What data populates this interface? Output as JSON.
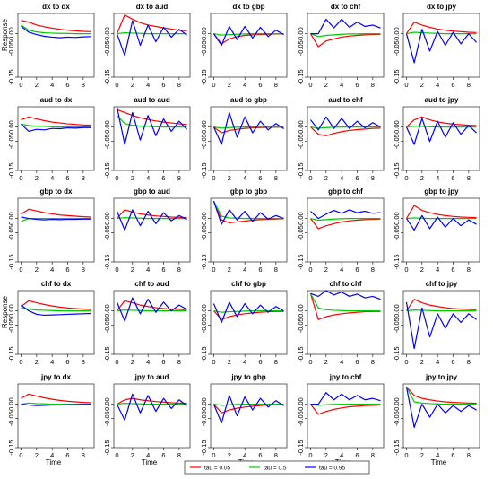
{
  "legend": {
    "items": [
      {
        "label": "tau = 0.05",
        "color": "#ff0000"
      },
      {
        "label": "tau = 0.5",
        "color": "#00cc00"
      },
      {
        "label": "tau = 0.95",
        "color": "#0000ff"
      }
    ]
  },
  "chart_data": {
    "type": "line",
    "layout": "5x5 small multiples",
    "x": [
      0,
      1,
      2,
      3,
      4,
      5,
      6,
      7,
      8,
      9
    ],
    "xticks": [
      0,
      2,
      4,
      6,
      8
    ],
    "yticks": [
      0.0,
      -0.05,
      -0.15
    ],
    "ytick_labels": [
      "0.00",
      "-0.05",
      "-0.15"
    ],
    "ylim": [
      -0.15,
      0.07
    ],
    "xlabel": "Time",
    "ylabel": "Response",
    "grid": false,
    "legend_position": "bottom-center",
    "series_names": [
      "tau = 0.05",
      "tau = 0.5",
      "tau = 0.95"
    ],
    "series_colors": [
      "#ff0000",
      "#00cc00",
      "#0000ff"
    ],
    "panels": [
      {
        "title": "dx to dx",
        "series": [
          [
            0.046,
            0.04,
            0.03,
            0.024,
            0.019,
            0.015,
            0.012,
            0.01,
            0.008,
            0.007
          ],
          [
            0.03,
            0.012,
            0.006,
            0.003,
            0.002,
            0.001,
            0.001,
            0.0,
            0.0,
            0.0
          ],
          [
            0.026,
            0.005,
            -0.003,
            -0.009,
            -0.012,
            -0.014,
            -0.012,
            -0.013,
            -0.011,
            -0.01
          ]
        ]
      },
      {
        "title": "dx to aud",
        "series": [
          [
            0.0,
            0.065,
            0.05,
            0.038,
            0.03,
            0.025,
            0.02,
            0.016,
            0.012,
            0.01
          ],
          [
            0.0,
            0.003,
            0.002,
            0.001,
            0.0,
            0.0,
            0.0,
            0.0,
            0.0,
            0.0
          ],
          [
            0.0,
            -0.075,
            0.045,
            -0.04,
            0.03,
            -0.028,
            0.022,
            -0.012,
            0.015,
            -0.005
          ]
        ]
      },
      {
        "title": "dx to gbp",
        "series": [
          [
            0.0,
            -0.035,
            -0.018,
            -0.01,
            -0.006,
            -0.004,
            -0.003,
            -0.002,
            -0.001,
            -0.001
          ],
          [
            0.0,
            -0.005,
            -0.003,
            -0.002,
            -0.001,
            0.0,
            0.0,
            0.0,
            0.0,
            0.0
          ],
          [
            0.0,
            -0.04,
            0.025,
            -0.02,
            0.025,
            -0.015,
            0.022,
            -0.01,
            0.012,
            -0.003
          ]
        ]
      },
      {
        "title": "dx to chf",
        "series": [
          [
            0.0,
            -0.045,
            -0.025,
            -0.018,
            -0.012,
            -0.008,
            -0.006,
            -0.004,
            -0.003,
            -0.002
          ],
          [
            0.0,
            -0.01,
            -0.006,
            -0.004,
            -0.002,
            -0.001,
            -0.001,
            0.0,
            0.0,
            0.0
          ],
          [
            0.0,
            0.0,
            0.05,
            0.02,
            0.05,
            0.022,
            0.04,
            0.025,
            0.03,
            0.02
          ]
        ]
      },
      {
        "title": "dx to jpy",
        "series": [
          [
            0.0,
            0.04,
            0.03,
            0.022,
            0.016,
            0.012,
            0.009,
            0.007,
            0.005,
            0.004
          ],
          [
            0.0,
            0.005,
            0.003,
            0.002,
            0.001,
            0.0,
            0.0,
            0.0,
            0.0,
            0.0
          ],
          [
            0.0,
            -0.1,
            0.015,
            -0.06,
            0.008,
            -0.04,
            0.005,
            -0.035,
            0.0,
            -0.03
          ]
        ]
      },
      {
        "title": "aud to dx",
        "series": [
          [
            0.025,
            0.035,
            0.028,
            0.022,
            0.017,
            0.014,
            0.011,
            0.009,
            0.007,
            0.006
          ],
          [
            0.01,
            0.005,
            0.003,
            0.002,
            0.001,
            0.0,
            0.0,
            0.0,
            0.0,
            0.0
          ],
          [
            0.01,
            -0.015,
            -0.008,
            -0.01,
            -0.005,
            -0.006,
            -0.003,
            -0.004,
            -0.002,
            -0.002
          ]
        ]
      },
      {
        "title": "aud to aud",
        "series": [
          [
            0.06,
            0.05,
            0.04,
            0.032,
            0.026,
            0.021,
            0.017,
            0.014,
            0.011,
            0.009
          ],
          [
            0.04,
            0.012,
            0.006,
            0.003,
            0.002,
            0.001,
            0.0,
            0.0,
            0.0,
            0.0
          ],
          [
            0.07,
            -0.06,
            0.05,
            -0.045,
            0.04,
            -0.03,
            0.028,
            -0.015,
            0.02,
            -0.008
          ]
        ]
      },
      {
        "title": "aud to gbp",
        "series": [
          [
            0.0,
            -0.02,
            -0.012,
            -0.008,
            -0.005,
            -0.003,
            -0.002,
            -0.001,
            -0.001,
            0.0
          ],
          [
            0.0,
            -0.004,
            -0.002,
            -0.001,
            0.0,
            0.0,
            0.0,
            0.0,
            0.0,
            0.0
          ],
          [
            0.0,
            -0.06,
            0.05,
            -0.035,
            0.035,
            -0.02,
            0.02,
            -0.01,
            0.012,
            -0.006
          ]
        ]
      },
      {
        "title": "aud to chf",
        "series": [
          [
            0.0,
            -0.025,
            -0.03,
            -0.022,
            -0.016,
            -0.012,
            -0.009,
            -0.007,
            -0.005,
            -0.004
          ],
          [
            0.0,
            -0.004,
            -0.002,
            -0.001,
            0.0,
            0.0,
            0.0,
            0.0,
            0.0,
            0.0
          ],
          [
            0.025,
            -0.01,
            0.035,
            -0.005,
            0.03,
            -0.005,
            0.02,
            -0.003,
            0.015,
            0.0
          ]
        ]
      },
      {
        "title": "aud to jpy",
        "series": [
          [
            0.0,
            0.025,
            0.035,
            0.025,
            0.018,
            0.013,
            0.01,
            0.008,
            0.006,
            0.005
          ],
          [
            0.0,
            0.003,
            0.002,
            0.001,
            0.0,
            0.0,
            0.0,
            0.0,
            0.0,
            0.0
          ],
          [
            0.0,
            -0.06,
            0.03,
            -0.05,
            0.02,
            -0.035,
            0.015,
            -0.025,
            0.005,
            -0.02
          ]
        ]
      },
      {
        "title": "gbp to dx",
        "series": [
          [
            0.015,
            0.032,
            0.026,
            0.02,
            0.016,
            0.012,
            0.01,
            0.008,
            0.006,
            0.005
          ],
          [
            -0.01,
            0.0,
            0.0,
            0.0,
            0.0,
            0.0,
            0.0,
            0.0,
            0.0,
            0.0
          ],
          [
            0.005,
            0.0,
            -0.003,
            -0.005,
            -0.003,
            -0.004,
            -0.003,
            -0.003,
            -0.002,
            -0.002
          ]
        ]
      },
      {
        "title": "gbp to aud",
        "series": [
          [
            0.0,
            0.03,
            0.022,
            0.016,
            0.012,
            0.009,
            0.007,
            0.005,
            0.004,
            0.003
          ],
          [
            0.0,
            0.003,
            0.002,
            0.001,
            0.0,
            0.0,
            0.0,
            0.0,
            0.0,
            0.0
          ],
          [
            0.025,
            -0.04,
            0.03,
            -0.025,
            0.025,
            -0.018,
            0.02,
            -0.008,
            0.01,
            -0.003
          ]
        ]
      },
      {
        "title": "gbp to gbp",
        "series": [
          [
            0.06,
            -0.005,
            -0.015,
            -0.012,
            -0.009,
            -0.006,
            -0.004,
            -0.003,
            -0.002,
            -0.001
          ],
          [
            0.06,
            0.008,
            0.002,
            0.001,
            0.0,
            0.0,
            0.0,
            0.0,
            0.0,
            0.0
          ],
          [
            0.06,
            -0.02,
            0.03,
            -0.005,
            0.025,
            -0.01,
            0.02,
            -0.002,
            0.01,
            0.0
          ]
        ]
      },
      {
        "title": "gbp to chf",
        "series": [
          [
            0.0,
            -0.035,
            -0.025,
            -0.018,
            -0.012,
            -0.008,
            -0.006,
            -0.004,
            -0.003,
            -0.002
          ],
          [
            0.0,
            -0.006,
            -0.004,
            -0.002,
            -0.001,
            0.0,
            0.0,
            0.0,
            0.0,
            0.0
          ],
          [
            0.025,
            0.0,
            0.015,
            0.028,
            0.018,
            0.03,
            0.02,
            0.025,
            0.018,
            0.02
          ]
        ]
      },
      {
        "title": "gbp to jpy",
        "series": [
          [
            0.0,
            0.045,
            0.028,
            0.02,
            0.014,
            0.01,
            0.007,
            0.005,
            0.004,
            0.003
          ],
          [
            0.0,
            0.002,
            0.001,
            0.0,
            0.0,
            0.0,
            0.0,
            0.0,
            0.0,
            0.0
          ],
          [
            0.0,
            -0.04,
            0.01,
            -0.035,
            0.005,
            -0.03,
            0.0,
            -0.025,
            -0.005,
            -0.02
          ]
        ]
      },
      {
        "title": "chf to dx",
        "series": [
          [
            0.015,
            0.035,
            0.028,
            0.022,
            0.017,
            0.013,
            0.01,
            0.008,
            0.006,
            0.005
          ],
          [
            0.01,
            0.006,
            0.003,
            0.002,
            0.001,
            0.0,
            0.0,
            0.0,
            0.0,
            0.0
          ],
          [
            0.02,
            0.0,
            -0.012,
            -0.015,
            -0.014,
            -0.013,
            -0.012,
            -0.011,
            -0.01,
            -0.009
          ]
        ]
      },
      {
        "title": "chf to aud",
        "series": [
          [
            0.0,
            0.035,
            0.028,
            0.02,
            0.015,
            0.011,
            0.008,
            0.006,
            0.005,
            0.004
          ],
          [
            0.0,
            0.003,
            0.002,
            0.001,
            0.0,
            0.0,
            0.0,
            0.0,
            0.0,
            0.0
          ],
          [
            0.03,
            -0.035,
            0.045,
            -0.01,
            0.04,
            -0.005,
            0.03,
            0.0,
            0.02,
            0.005
          ]
        ]
      },
      {
        "title": "chf to gbp",
        "series": [
          [
            0.0,
            -0.03,
            -0.02,
            -0.014,
            -0.01,
            -0.007,
            -0.005,
            -0.003,
            -0.002,
            -0.002
          ],
          [
            0.0,
            -0.005,
            -0.003,
            -0.002,
            -0.001,
            0.0,
            0.0,
            0.0,
            0.0,
            0.0
          ],
          [
            0.025,
            -0.04,
            0.03,
            -0.02,
            0.025,
            -0.01,
            0.02,
            -0.005,
            0.015,
            0.0
          ]
        ]
      },
      {
        "title": "chf to chf",
        "series": [
          [
            0.06,
            -0.03,
            -0.02,
            -0.014,
            -0.01,
            -0.007,
            -0.005,
            -0.003,
            -0.002,
            -0.002
          ],
          [
            0.06,
            0.01,
            0.004,
            0.002,
            0.001,
            0.0,
            0.0,
            0.0,
            0.0,
            0.0
          ],
          [
            0.06,
            0.05,
            0.07,
            0.055,
            0.065,
            0.05,
            0.058,
            0.045,
            0.05,
            0.04
          ]
        ]
      },
      {
        "title": "chf to jpy",
        "series": [
          [
            0.0,
            0.04,
            0.028,
            0.02,
            0.015,
            0.011,
            0.008,
            0.006,
            0.005,
            0.004
          ],
          [
            0.0,
            0.003,
            0.002,
            0.001,
            0.0,
            0.0,
            0.0,
            0.0,
            0.0,
            0.0
          ],
          [
            0.03,
            -0.13,
            0.01,
            -0.09,
            -0.01,
            -0.06,
            -0.01,
            -0.04,
            -0.01,
            -0.03
          ]
        ]
      },
      {
        "title": "jpy to dx",
        "series": [
          [
            0.02,
            0.035,
            0.028,
            0.022,
            0.017,
            0.013,
            0.01,
            0.008,
            0.006,
            0.005
          ],
          [
            0.0,
            0.004,
            0.002,
            0.001,
            0.0,
            0.0,
            0.0,
            0.0,
            0.0,
            0.0
          ],
          [
            0.0,
            -0.003,
            -0.005,
            -0.004,
            -0.003,
            -0.003,
            -0.002,
            -0.002,
            -0.001,
            -0.001
          ]
        ]
      },
      {
        "title": "jpy to aud",
        "series": [
          [
            0.0,
            0.015,
            0.02,
            0.015,
            0.012,
            0.009,
            0.007,
            0.005,
            0.004,
            0.003
          ],
          [
            0.0,
            0.003,
            0.002,
            0.001,
            0.0,
            0.0,
            0.0,
            0.0,
            0.0,
            0.0
          ],
          [
            0.0,
            -0.055,
            0.035,
            -0.03,
            0.03,
            -0.025,
            0.02,
            -0.015,
            0.015,
            -0.005
          ]
        ]
      },
      {
        "title": "jpy to gbp",
        "series": [
          [
            0.0,
            -0.03,
            -0.02,
            -0.014,
            -0.01,
            -0.007,
            -0.005,
            -0.003,
            -0.002,
            -0.002
          ],
          [
            0.0,
            -0.004,
            -0.002,
            -0.001,
            0.0,
            0.0,
            0.0,
            0.0,
            0.0,
            0.0
          ],
          [
            0.0,
            -0.065,
            0.03,
            -0.04,
            0.025,
            -0.02,
            0.02,
            -0.01,
            0.012,
            -0.005
          ]
        ]
      },
      {
        "title": "jpy to chf",
        "series": [
          [
            0.0,
            -0.035,
            -0.025,
            -0.018,
            -0.013,
            -0.009,
            -0.007,
            -0.005,
            -0.004,
            -0.003
          ],
          [
            0.0,
            -0.004,
            -0.002,
            -0.001,
            0.0,
            0.0,
            0.0,
            0.0,
            0.0,
            0.0
          ],
          [
            0.0,
            0.0,
            0.04,
            0.015,
            0.035,
            0.015,
            0.03,
            0.015,
            0.02,
            0.012
          ]
        ]
      },
      {
        "title": "jpy to jpy",
        "series": [
          [
            0.06,
            0.03,
            0.02,
            0.015,
            0.011,
            0.008,
            0.006,
            0.005,
            0.004,
            0.003
          ],
          [
            0.06,
            0.008,
            0.004,
            0.002,
            0.001,
            0.0,
            0.0,
            0.0,
            0.0,
            0.0
          ],
          [
            0.06,
            -0.08,
            0.0,
            -0.045,
            0.0,
            -0.03,
            -0.005,
            -0.025,
            -0.005,
            -0.02
          ]
        ]
      }
    ]
  }
}
